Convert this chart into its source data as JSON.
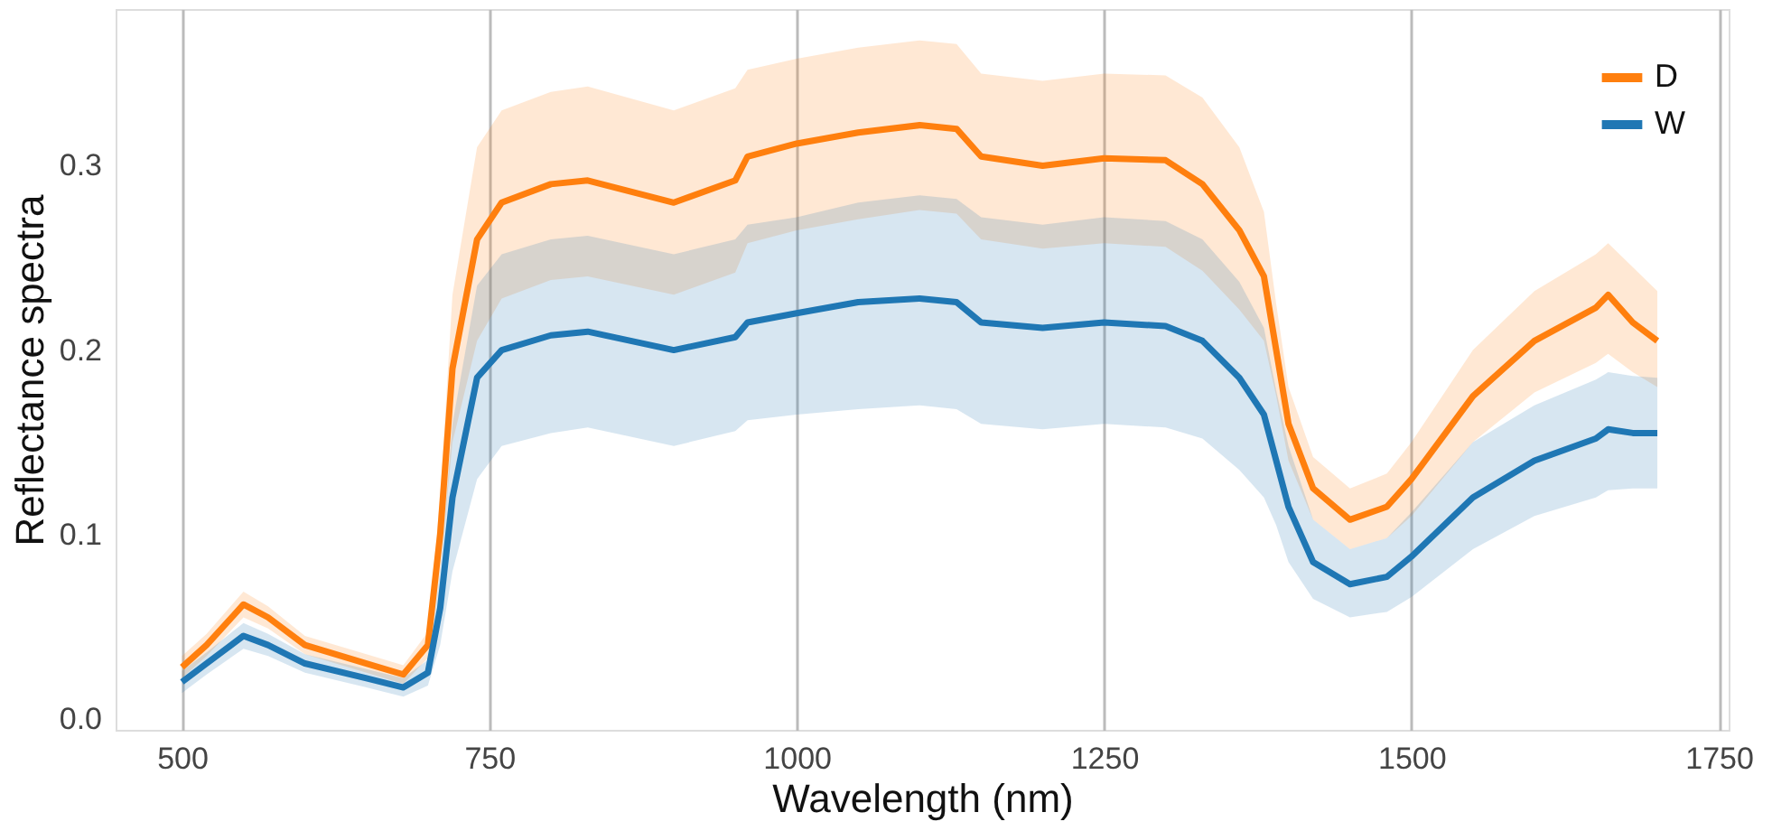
{
  "chart_data": {
    "type": "line",
    "xlabel": "Wavelength (nm)",
    "ylabel": "Reflectance spectra",
    "x": [
      500,
      520,
      550,
      570,
      600,
      650,
      680,
      700,
      710,
      720,
      740,
      760,
      800,
      830,
      900,
      950,
      960,
      1000,
      1050,
      1100,
      1130,
      1150,
      1200,
      1250,
      1300,
      1330,
      1360,
      1380,
      1390,
      1400,
      1420,
      1450,
      1480,
      1500,
      1550,
      1600,
      1650,
      1660,
      1680,
      1700
    ],
    "xlim": [
      446,
      1758
    ],
    "xticks": [
      500,
      750,
      1000,
      1250,
      1500,
      1750
    ],
    "ylim": [
      -0.006,
      0.385
    ],
    "yticks": [
      {
        "value": 0,
        "label": "0.0"
      },
      {
        "value": 0.1,
        "label": "0.1"
      },
      {
        "value": 0.2,
        "label": "0.2"
      },
      {
        "value": 0.3,
        "label": "0.3"
      }
    ],
    "grid": "x",
    "legend": "top right",
    "line_style": "solid",
    "marker": "none",
    "series": [
      {
        "name": "D",
        "color": "#ff7f0e",
        "values": [
          0.028,
          0.04,
          0.062,
          0.055,
          0.04,
          0.03,
          0.024,
          0.04,
          0.1,
          0.19,
          0.26,
          0.28,
          0.29,
          0.292,
          0.28,
          0.292,
          0.305,
          0.312,
          0.318,
          0.322,
          0.32,
          0.305,
          0.3,
          0.304,
          0.303,
          0.29,
          0.265,
          0.24,
          0.2,
          0.16,
          0.125,
          0.108,
          0.115,
          0.13,
          0.175,
          0.205,
          0.223,
          0.23,
          0.215,
          0.205
        ],
        "lower": [
          0.022,
          0.034,
          0.055,
          0.049,
          0.035,
          0.025,
          0.019,
          0.033,
          0.08,
          0.15,
          0.205,
          0.228,
          0.238,
          0.24,
          0.23,
          0.242,
          0.258,
          0.265,
          0.271,
          0.276,
          0.274,
          0.26,
          0.255,
          0.258,
          0.256,
          0.243,
          0.222,
          0.205,
          0.175,
          0.14,
          0.108,
          0.092,
          0.098,
          0.11,
          0.15,
          0.177,
          0.193,
          0.198,
          0.188,
          0.18
        ],
        "upper": [
          0.034,
          0.046,
          0.069,
          0.061,
          0.045,
          0.035,
          0.029,
          0.047,
          0.12,
          0.23,
          0.31,
          0.33,
          0.34,
          0.343,
          0.33,
          0.342,
          0.352,
          0.358,
          0.364,
          0.368,
          0.366,
          0.35,
          0.346,
          0.35,
          0.349,
          0.337,
          0.31,
          0.275,
          0.225,
          0.18,
          0.142,
          0.125,
          0.133,
          0.15,
          0.2,
          0.232,
          0.252,
          0.258,
          0.245,
          0.232
        ]
      },
      {
        "name": "W",
        "color": "#1f77b4",
        "values": [
          0.02,
          0.03,
          0.045,
          0.04,
          0.03,
          0.022,
          0.017,
          0.025,
          0.06,
          0.12,
          0.185,
          0.2,
          0.208,
          0.21,
          0.2,
          0.207,
          0.215,
          0.22,
          0.226,
          0.228,
          0.226,
          0.215,
          0.212,
          0.215,
          0.213,
          0.205,
          0.185,
          0.165,
          0.14,
          0.115,
          0.085,
          0.073,
          0.077,
          0.088,
          0.12,
          0.14,
          0.152,
          0.157,
          0.155,
          0.155
        ],
        "lower": [
          0.014,
          0.024,
          0.038,
          0.034,
          0.025,
          0.017,
          0.012,
          0.018,
          0.04,
          0.08,
          0.13,
          0.148,
          0.155,
          0.158,
          0.148,
          0.156,
          0.162,
          0.165,
          0.168,
          0.17,
          0.168,
          0.16,
          0.157,
          0.16,
          0.158,
          0.152,
          0.135,
          0.12,
          0.105,
          0.085,
          0.065,
          0.055,
          0.058,
          0.066,
          0.092,
          0.11,
          0.12,
          0.124,
          0.125,
          0.125
        ],
        "upper": [
          0.026,
          0.036,
          0.052,
          0.046,
          0.035,
          0.027,
          0.022,
          0.032,
          0.08,
          0.16,
          0.235,
          0.252,
          0.26,
          0.262,
          0.252,
          0.26,
          0.268,
          0.272,
          0.28,
          0.284,
          0.282,
          0.272,
          0.268,
          0.272,
          0.27,
          0.26,
          0.237,
          0.212,
          0.178,
          0.148,
          0.108,
          0.092,
          0.098,
          0.112,
          0.15,
          0.17,
          0.184,
          0.188,
          0.186,
          0.185
        ]
      }
    ]
  }
}
